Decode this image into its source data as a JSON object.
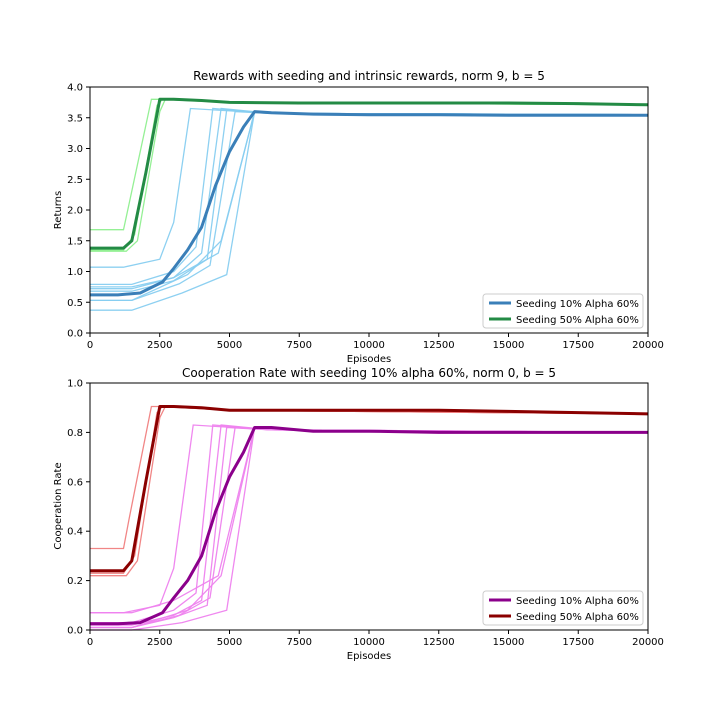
{
  "chart_data": [
    {
      "type": "line",
      "title": "Rewards with seeding and intrinsic rewards, norm 9, b = 5",
      "xlabel": "Episodes",
      "ylabel": "Returns",
      "xlim": [
        0,
        20000
      ],
      "ylim": [
        0,
        4.0
      ],
      "xticks": [
        0,
        2500,
        5000,
        7500,
        10000,
        12500,
        15000,
        17500,
        20000
      ],
      "xtick_labels": [
        "0",
        "2500",
        "5000",
        "7500",
        "10000",
        "12500",
        "15000",
        "17500",
        "20000"
      ],
      "yticks": [
        0,
        0.5,
        1.0,
        1.5,
        2.0,
        2.5,
        3.0,
        3.5,
        4.0
      ],
      "ytick_labels": [
        "0.0",
        "0.5",
        "1.0",
        "1.5",
        "2.0",
        "2.5",
        "3.0",
        "3.5",
        "4.0"
      ],
      "grid": false,
      "legend_position": "lower-right",
      "series": [
        {
          "name": "Seeding 10% Alpha 60%",
          "color": "#3a7fb8",
          "x": [
            0,
            1000,
            1800,
            2600,
            3000,
            3500,
            4000,
            4500,
            5000,
            5500,
            5900,
            6500,
            8000,
            10000,
            12500,
            15000,
            17500,
            20000
          ],
          "y": [
            0.62,
            0.62,
            0.65,
            0.83,
            1.05,
            1.35,
            1.72,
            2.4,
            2.95,
            3.35,
            3.6,
            3.58,
            3.56,
            3.55,
            3.55,
            3.54,
            3.54,
            3.54
          ],
          "runs": [
            {
              "color": "#87cdf0",
              "x": [
                0,
                1200,
                2500,
                3000,
                3600,
                6500,
                20000
              ],
              "y": [
                1.07,
                1.07,
                1.2,
                1.8,
                3.65,
                3.57,
                3.55
              ]
            },
            {
              "color": "#87cdf0",
              "x": [
                0,
                1500,
                3000,
                3800,
                4400,
                6500,
                20000
              ],
              "y": [
                0.79,
                0.79,
                1.0,
                1.4,
                3.65,
                3.57,
                3.55
              ]
            },
            {
              "color": "#87cdf0",
              "x": [
                0,
                1500,
                3000,
                4000,
                4700,
                6500,
                20000
              ],
              "y": [
                0.72,
                0.72,
                0.9,
                1.3,
                3.65,
                3.57,
                3.55
              ]
            },
            {
              "color": "#87cdf0",
              "x": [
                0,
                1500,
                3000,
                4200,
                4900,
                6500,
                20000
              ],
              "y": [
                0.68,
                0.68,
                0.85,
                1.2,
                3.63,
                3.57,
                3.55
              ]
            },
            {
              "color": "#87cdf0",
              "x": [
                0,
                1500,
                3200,
                4300,
                5200,
                6500,
                20000
              ],
              "y": [
                0.53,
                0.53,
                0.8,
                1.1,
                3.6,
                3.57,
                3.55
              ]
            },
            {
              "color": "#87cdf0",
              "x": [
                0,
                1500,
                3500,
                4700,
                5900,
                7000,
                20000
              ],
              "y": [
                0.53,
                0.53,
                0.95,
                1.5,
                3.6,
                3.57,
                3.55
              ]
            },
            {
              "color": "#87cdf0",
              "x": [
                0,
                1500,
                3300,
                4900,
                5900,
                7000,
                20000
              ],
              "y": [
                0.37,
                0.37,
                0.65,
                0.95,
                3.6,
                3.57,
                3.55
              ]
            },
            {
              "color": "#87cdf0",
              "x": [
                0,
                1500,
                3000,
                4600,
                5900,
                7000,
                20000
              ],
              "y": [
                0.75,
                0.75,
                0.9,
                1.3,
                3.6,
                3.57,
                3.55
              ]
            }
          ]
        },
        {
          "name": "Seeding 50% Alpha 60%",
          "color": "#238b45",
          "x": [
            0,
            1200,
            1500,
            2000,
            2500,
            3000,
            4000,
            5000,
            7500,
            10000,
            12500,
            15000,
            17500,
            20000
          ],
          "y": [
            1.38,
            1.38,
            1.5,
            2.6,
            3.8,
            3.8,
            3.78,
            3.75,
            3.74,
            3.74,
            3.74,
            3.74,
            3.73,
            3.71
          ],
          "runs": [
            {
              "color": "#8fef8f",
              "x": [
                0,
                1200,
                1400,
                2200,
                2500,
                5000,
                20000
              ],
              "y": [
                1.68,
                1.68,
                2.1,
                3.8,
                3.8,
                3.75,
                3.71
              ]
            },
            {
              "color": "#8fef8f",
              "x": [
                0,
                1200,
                1600,
                2400,
                2600,
                5000,
                20000
              ],
              "y": [
                1.35,
                1.35,
                1.6,
                3.7,
                3.8,
                3.75,
                3.71
              ]
            },
            {
              "color": "#8fef8f",
              "x": [
                0,
                1300,
                1700,
                2500,
                2700,
                5000,
                20000
              ],
              "y": [
                1.33,
                1.33,
                1.5,
                3.6,
                3.8,
                3.75,
                3.71
              ]
            }
          ]
        }
      ]
    },
    {
      "type": "line",
      "title": "Cooperation Rate with seeding 10% alpha 60%, norm 0, b = 5",
      "xlabel": "Episodes",
      "ylabel": "Cooperation Rate",
      "xlim": [
        0,
        20000
      ],
      "ylim": [
        0,
        1.0
      ],
      "xticks": [
        0,
        2500,
        5000,
        7500,
        10000,
        12500,
        15000,
        17500,
        20000
      ],
      "xtick_labels": [
        "0",
        "2500",
        "5000",
        "7500",
        "10000",
        "12500",
        "15000",
        "17500",
        "20000"
      ],
      "yticks": [
        0,
        0.2,
        0.4,
        0.6,
        0.8,
        1.0
      ],
      "ytick_labels": [
        "0.0",
        "0.2",
        "0.4",
        "0.6",
        "0.8",
        "1.0"
      ],
      "grid": false,
      "legend_position": "lower-right",
      "series": [
        {
          "name": "Seeding 10% Alpha 60%",
          "color": "#8b008b",
          "x": [
            0,
            1000,
            1800,
            2600,
            3000,
            3500,
            4000,
            4500,
            5000,
            5500,
            5900,
            6500,
            8000,
            10000,
            12500,
            15000,
            17500,
            20000
          ],
          "y": [
            0.025,
            0.025,
            0.03,
            0.07,
            0.13,
            0.2,
            0.3,
            0.48,
            0.62,
            0.72,
            0.82,
            0.82,
            0.805,
            0.805,
            0.8,
            0.8,
            0.8,
            0.8
          ],
          "runs": [
            {
              "color": "#ee82ee",
              "x": [
                0,
                1200,
                2500,
                3000,
                3700,
                6500,
                20000
              ],
              "y": [
                0.07,
                0.07,
                0.1,
                0.25,
                0.83,
                0.81,
                0.8
              ]
            },
            {
              "color": "#ee82ee",
              "x": [
                0,
                1500,
                3000,
                3800,
                4400,
                6500,
                20000
              ],
              "y": [
                0.03,
                0.03,
                0.08,
                0.15,
                0.83,
                0.81,
                0.8
              ]
            },
            {
              "color": "#ee82ee",
              "x": [
                0,
                1500,
                3000,
                4000,
                4700,
                6500,
                20000
              ],
              "y": [
                0.02,
                0.02,
                0.06,
                0.12,
                0.83,
                0.81,
                0.8
              ]
            },
            {
              "color": "#ee82ee",
              "x": [
                0,
                1500,
                3000,
                4200,
                4900,
                6500,
                20000
              ],
              "y": [
                0.01,
                0.01,
                0.05,
                0.1,
                0.82,
                0.81,
                0.8
              ]
            },
            {
              "color": "#ee82ee",
              "x": [
                0,
                1500,
                3200,
                4300,
                5200,
                6500,
                20000
              ],
              "y": [
                0.01,
                0.01,
                0.06,
                0.13,
                0.82,
                0.81,
                0.8
              ]
            },
            {
              "color": "#ee82ee",
              "x": [
                0,
                1500,
                3500,
                4700,
                5900,
                7000,
                20000
              ],
              "y": [
                0.01,
                0.01,
                0.08,
                0.22,
                0.82,
                0.81,
                0.8
              ]
            },
            {
              "color": "#ee82ee",
              "x": [
                0,
                1500,
                3300,
                4900,
                5900,
                7000,
                20000
              ],
              "y": [
                0.0,
                0.0,
                0.03,
                0.08,
                0.82,
                0.81,
                0.8
              ]
            },
            {
              "color": "#ee82ee",
              "x": [
                0,
                1500,
                3000,
                4600,
                5900,
                7000,
                20000
              ],
              "y": [
                0.07,
                0.07,
                0.12,
                0.22,
                0.82,
                0.81,
                0.8
              ]
            }
          ]
        },
        {
          "name": "Seeding 50% Alpha 60%",
          "color": "#8b0000",
          "x": [
            0,
            1200,
            1500,
            2000,
            2500,
            3000,
            4000,
            5000,
            7500,
            10000,
            12500,
            15000,
            17500,
            20000
          ],
          "y": [
            0.24,
            0.24,
            0.28,
            0.6,
            0.905,
            0.905,
            0.9,
            0.89,
            0.89,
            0.89,
            0.89,
            0.885,
            0.88,
            0.875
          ],
          "runs": [
            {
              "color": "#f08080",
              "x": [
                0,
                1200,
                1400,
                2200,
                2500,
                5000,
                20000
              ],
              "y": [
                0.33,
                0.33,
                0.45,
                0.905,
                0.905,
                0.89,
                0.875
              ]
            },
            {
              "color": "#f08080",
              "x": [
                0,
                1200,
                1600,
                2400,
                2600,
                5000,
                20000
              ],
              "y": [
                0.23,
                0.23,
                0.3,
                0.88,
                0.905,
                0.89,
                0.875
              ]
            },
            {
              "color": "#f08080",
              "x": [
                0,
                1300,
                1700,
                2500,
                2700,
                5000,
                20000
              ],
              "y": [
                0.22,
                0.22,
                0.28,
                0.86,
                0.905,
                0.89,
                0.875
              ]
            }
          ]
        }
      ]
    }
  ]
}
